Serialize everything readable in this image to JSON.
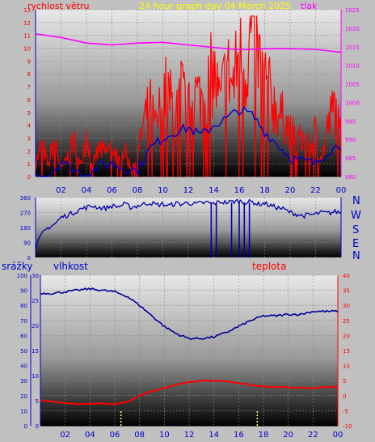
{
  "header": {
    "wind_label": "rychlost větru",
    "title": "24 hour graph day  04 March 2025",
    "pressure_label": "tlak"
  },
  "direction_letters": [
    "N",
    "W",
    "S",
    "E",
    "N"
  ],
  "lower_header": {
    "rain_label": "srážky",
    "humidity_label": "vlhkost",
    "temp_label": "teplota"
  },
  "colors": {
    "wind": "#ff0000",
    "gust_line": "#0000cc",
    "pressure": "#ff00ff",
    "direction": "#0000aa",
    "humidity": "#000099",
    "temperature": "#ff0000",
    "rain": "#ffff66",
    "axis_blue": "#0000cc",
    "axis_magenta": "#ff00ff",
    "axis_red": "#ff0000",
    "title_yellow": "#ffff00",
    "label_red": "#ff0000",
    "label_blue": "#0000cc"
  },
  "chart_data": [
    {
      "type": "line",
      "name": "wind-pressure",
      "x_tick_labels": [
        "02",
        "04",
        "06",
        "08",
        "10",
        "12",
        "14",
        "16",
        "18",
        "20",
        "22",
        "00"
      ],
      "y_left_ticks": [
        "0",
        "1",
        "2",
        "3",
        "4",
        "5",
        "6",
        "7",
        "8",
        "9",
        "10",
        "11",
        "12",
        "13"
      ],
      "y_right_ticks": [
        "980",
        "985",
        "990",
        "995",
        "1000",
        "1005",
        "1010",
        "1015",
        "1020",
        "1025"
      ],
      "ylim_left": [
        0,
        13
      ],
      "ylim_right": [
        980,
        1025
      ],
      "xlim": [
        0,
        24
      ],
      "series": [
        {
          "axis": "left",
          "x": [
            0,
            0.5,
            1,
            1.5,
            2,
            2.5,
            3,
            3.5,
            4,
            4.5,
            5,
            5.5,
            6,
            6.5,
            7,
            7.5,
            8,
            8.5,
            9,
            9.5,
            10,
            10.5,
            11,
            11.5,
            12,
            12.5,
            13,
            13.5,
            14,
            14.5,
            15,
            15.5,
            16,
            16.5,
            17,
            17.5,
            18,
            18.5,
            19,
            19.5,
            20,
            20.5,
            21,
            21.5,
            22,
            22.5,
            23,
            23.5,
            24
          ],
          "values": [
            1,
            2.5,
            0.8,
            3.2,
            0.5,
            1.5,
            2.8,
            0.7,
            3.5,
            0.9,
            2.2,
            1.8,
            2.4,
            1.2,
            2.1,
            0.6,
            1.5,
            4.2,
            5.5,
            3.5,
            7.0,
            6.2,
            4.8,
            6.8,
            5.0,
            6.5,
            6.0,
            7.5,
            8.0,
            5.5,
            8.5,
            7.0,
            9.5,
            8.2,
            11.8,
            9.0,
            7.5,
            6.2,
            5.0,
            4.5,
            3.5,
            2.8,
            3.0,
            2.2,
            3.5,
            1.5,
            4.0,
            5.5,
            3.0
          ]
        },
        {
          "axis": "left",
          "x": [
            0,
            1,
            2,
            3,
            4,
            5,
            6,
            7,
            8,
            9,
            10,
            11,
            12,
            13,
            14,
            15,
            16,
            17,
            18,
            19,
            20,
            21,
            22,
            23,
            24
          ],
          "values": [
            0,
            0,
            1.2,
            0.5,
            0.2,
            0.8,
            1.0,
            0.6,
            0.5,
            2.2,
            3.0,
            3.5,
            3.8,
            3.2,
            4.0,
            4.5,
            5.2,
            4.8,
            3.5,
            2.5,
            1.5,
            1.2,
            1.0,
            2.0,
            2.5
          ]
        },
        {
          "axis": "right",
          "x": [
            0,
            2,
            4,
            6,
            8,
            10,
            12,
            14,
            16,
            18,
            20,
            22,
            24
          ],
          "values": [
            1018.5,
            1017.5,
            1016,
            1015.5,
            1016,
            1016.2,
            1015.5,
            1014.8,
            1014.2,
            1014.5,
            1014.5,
            1014.3,
            1013.5
          ]
        }
      ]
    },
    {
      "type": "line",
      "name": "wind-direction",
      "y_ticks": [
        "0",
        "90",
        "180",
        "270",
        "360"
      ],
      "ylim": [
        0,
        360
      ],
      "xlim": [
        0,
        24
      ],
      "x": [
        0,
        0.5,
        1,
        1.5,
        2,
        2.5,
        3,
        3.5,
        4,
        4.5,
        5,
        5.5,
        6,
        6.5,
        7,
        7.5,
        8,
        8.5,
        9,
        9.5,
        10,
        10.5,
        11,
        11.5,
        12,
        12.5,
        13,
        13.5,
        14,
        14.5,
        15,
        15.5,
        16,
        16.5,
        17,
        17.5,
        18,
        18.5,
        19,
        19.5,
        20,
        20.5,
        21,
        21.5,
        22,
        22.5,
        23,
        23.5,
        24
      ],
      "values": [
        60,
        140,
        180,
        200,
        240,
        255,
        270,
        290,
        300,
        310,
        300,
        295,
        310,
        305,
        320,
        300,
        310,
        320,
        330,
        315,
        320,
        310,
        325,
        320,
        330,
        320,
        325,
        330,
        320,
        335,
        330,
        335,
        340,
        330,
        335,
        320,
        325,
        310,
        300,
        290,
        270,
        260,
        250,
        255,
        260,
        270,
        265,
        275,
        270
      ],
      "drops_x": [
        13.8,
        14.2,
        15.4,
        16.0,
        16.4,
        16.8
      ]
    },
    {
      "type": "line",
      "name": "humidity-temperature-rain",
      "x_tick_labels": [
        "02",
        "04",
        "06",
        "08",
        "10",
        "12",
        "14",
        "16",
        "18",
        "20",
        "22",
        "00"
      ],
      "y_rain_ticks": [
        "0",
        "5",
        "10",
        "15",
        "20",
        "25",
        "30"
      ],
      "y_humidity_ticks": [
        "0",
        "10",
        "20",
        "30",
        "40",
        "50",
        "60",
        "70",
        "80",
        "90",
        "100"
      ],
      "y_temp_ticks": [
        "-10",
        "-5",
        "0",
        "5",
        "10",
        "15",
        "20",
        "25",
        "30",
        "35",
        "40"
      ],
      "ylim_humidity": [
        0,
        100
      ],
      "ylim_temp": [
        -10,
        40
      ],
      "xlim": [
        0,
        24
      ],
      "series": [
        {
          "axis": "humidity",
          "x": [
            0,
            1,
            2,
            3,
            4,
            5,
            6,
            7,
            8,
            9,
            10,
            11,
            12,
            13,
            14,
            15,
            16,
            17,
            18,
            19,
            20,
            21,
            22,
            23,
            24
          ],
          "values": [
            88,
            88,
            89,
            90,
            91,
            90,
            89,
            86,
            80,
            73,
            66,
            61,
            58,
            58,
            59,
            62,
            66,
            70,
            73,
            73,
            74,
            74,
            76,
            76,
            76
          ]
        },
        {
          "axis": "temp",
          "x": [
            0,
            1,
            2,
            3,
            4,
            5,
            6,
            7,
            8,
            9,
            10,
            11,
            12,
            13,
            14,
            15,
            16,
            17,
            18,
            19,
            20,
            21,
            22,
            23,
            24
          ],
          "values": [
            -1.5,
            -2,
            -2.5,
            -2.8,
            -2.7,
            -2.6,
            -2.8,
            -2,
            0,
            1.5,
            2.5,
            3.8,
            4.5,
            5,
            5,
            4.8,
            4.2,
            3.5,
            3,
            2.8,
            2.8,
            2.6,
            2.5,
            2.8,
            3
          ]
        }
      ],
      "rain_marks_x": [
        6.5,
        17.5
      ]
    }
  ]
}
